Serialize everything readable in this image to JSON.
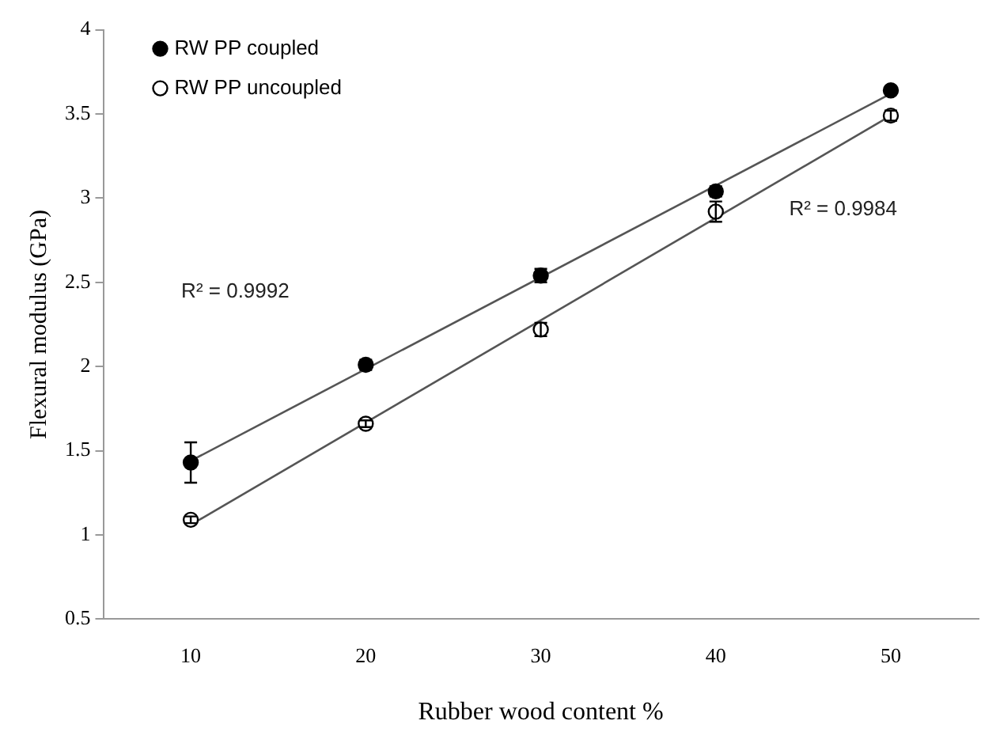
{
  "chart_data": {
    "type": "scatter",
    "xlabel": "Rubber wood content %",
    "ylabel": "Flexural modulus (GPa)",
    "categories": [
      "10",
      "20",
      "30",
      "40",
      "50"
    ],
    "ylim": [
      0.5,
      4
    ],
    "yticks": [
      0.5,
      1,
      1.5,
      2,
      2.5,
      3,
      3.5,
      4
    ],
    "legend": "top left",
    "line_style": "solid",
    "grid": false,
    "series": [
      {
        "name": "RW PP coupled",
        "marker": "circle",
        "color": "#000000",
        "values": [
          1.43,
          2.01,
          2.54,
          3.04,
          3.64
        ],
        "errors": [
          0.12,
          0.03,
          0.04,
          0.03,
          0.02
        ]
      },
      {
        "name": "RW PP uncoupled",
        "marker": "circle",
        "color": "#ffffff",
        "values": [
          1.09,
          1.66,
          2.22,
          2.92,
          3.49
        ],
        "errors": [
          0.02,
          0.02,
          0.04,
          0.06,
          0.03
        ]
      },
      {
        "type": "line",
        "color": "#555555",
        "values": [
          1.44,
          null,
          null,
          null,
          3.62
        ]
      },
      {
        "type": "line",
        "color": "#555555",
        "values": [
          1.06,
          null,
          null,
          null,
          3.49
        ]
      }
    ],
    "annotations": [
      "R² = 0.9992",
      "R² = 0.9984"
    ]
  }
}
